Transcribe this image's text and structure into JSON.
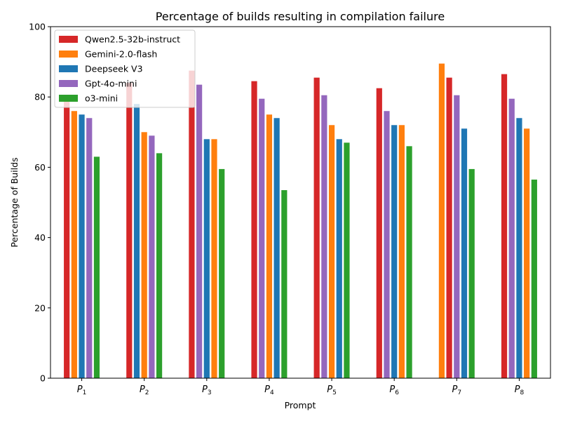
{
  "chart_data": {
    "type": "bar",
    "title": "Percentage of builds resulting in compilation failure",
    "xlabel": "Prompt",
    "ylabel": "Percentage of Builds",
    "ylim": [
      0,
      100
    ],
    "yticks": [
      0,
      20,
      40,
      60,
      80,
      100
    ],
    "grid": false,
    "legend_position": "top-left",
    "categories": [
      {
        "base": "P",
        "sub": "1"
      },
      {
        "base": "P",
        "sub": "2"
      },
      {
        "base": "P",
        "sub": "3"
      },
      {
        "base": "P",
        "sub": "4"
      },
      {
        "base": "P",
        "sub": "5"
      },
      {
        "base": "P",
        "sub": "6"
      },
      {
        "base": "P",
        "sub": "7"
      },
      {
        "base": "P",
        "sub": "8"
      }
    ],
    "series": [
      {
        "name": "Qwen2.5-32b-instruct",
        "color": "#d62728"
      },
      {
        "name": "Gemini-2.0-flash",
        "color": "#ff7f0e"
      },
      {
        "name": "Deepseek V3",
        "color": "#1f77b4"
      },
      {
        "name": "Gpt-4o-mini",
        "color": "#9467bd"
      },
      {
        "name": "o3-mini",
        "color": "#2ca02c"
      }
    ],
    "groups": [
      [
        {
          "series": "Qwen2.5-32b-instruct",
          "value": 79
        },
        {
          "series": "Gemini-2.0-flash",
          "value": 76
        },
        {
          "series": "Deepseek V3",
          "value": 75
        },
        {
          "series": "Gpt-4o-mini",
          "value": 74
        },
        {
          "series": "o3-mini",
          "value": 63
        }
      ],
      [
        {
          "series": "Qwen2.5-32b-instruct",
          "value": 84
        },
        {
          "series": "Deepseek V3",
          "value": 78
        },
        {
          "series": "Gemini-2.0-flash",
          "value": 70
        },
        {
          "series": "Gpt-4o-mini",
          "value": 69
        },
        {
          "series": "o3-mini",
          "value": 64
        }
      ],
      [
        {
          "series": "Qwen2.5-32b-instruct",
          "value": 87.5
        },
        {
          "series": "Gpt-4o-mini",
          "value": 83.5
        },
        {
          "series": "Deepseek V3",
          "value": 68
        },
        {
          "series": "Gemini-2.0-flash",
          "value": 68
        },
        {
          "series": "o3-mini",
          "value": 59.5
        }
      ],
      [
        {
          "series": "Qwen2.5-32b-instruct",
          "value": 84.5
        },
        {
          "series": "Gpt-4o-mini",
          "value": 79.5
        },
        {
          "series": "Gemini-2.0-flash",
          "value": 75
        },
        {
          "series": "Deepseek V3",
          "value": 74
        },
        {
          "series": "o3-mini",
          "value": 53.5
        }
      ],
      [
        {
          "series": "Qwen2.5-32b-instruct",
          "value": 85.5
        },
        {
          "series": "Gpt-4o-mini",
          "value": 80.5
        },
        {
          "series": "Gemini-2.0-flash",
          "value": 72
        },
        {
          "series": "Deepseek V3",
          "value": 68
        },
        {
          "series": "o3-mini",
          "value": 67
        }
      ],
      [
        {
          "series": "Qwen2.5-32b-instruct",
          "value": 82.5
        },
        {
          "series": "Gpt-4o-mini",
          "value": 76
        },
        {
          "series": "Deepseek V3",
          "value": 72
        },
        {
          "series": "Gemini-2.0-flash",
          "value": 72
        },
        {
          "series": "o3-mini",
          "value": 66
        }
      ],
      [
        {
          "series": "Gemini-2.0-flash",
          "value": 89.5
        },
        {
          "series": "Qwen2.5-32b-instruct",
          "value": 85.5
        },
        {
          "series": "Gpt-4o-mini",
          "value": 80.5
        },
        {
          "series": "Deepseek V3",
          "value": 71
        },
        {
          "series": "o3-mini",
          "value": 59.5
        }
      ],
      [
        {
          "series": "Qwen2.5-32b-instruct",
          "value": 86.5
        },
        {
          "series": "Gpt-4o-mini",
          "value": 79.5
        },
        {
          "series": "Deepseek V3",
          "value": 74
        },
        {
          "series": "Gemini-2.0-flash",
          "value": 71
        },
        {
          "series": "o3-mini",
          "value": 56.5
        }
      ]
    ]
  }
}
